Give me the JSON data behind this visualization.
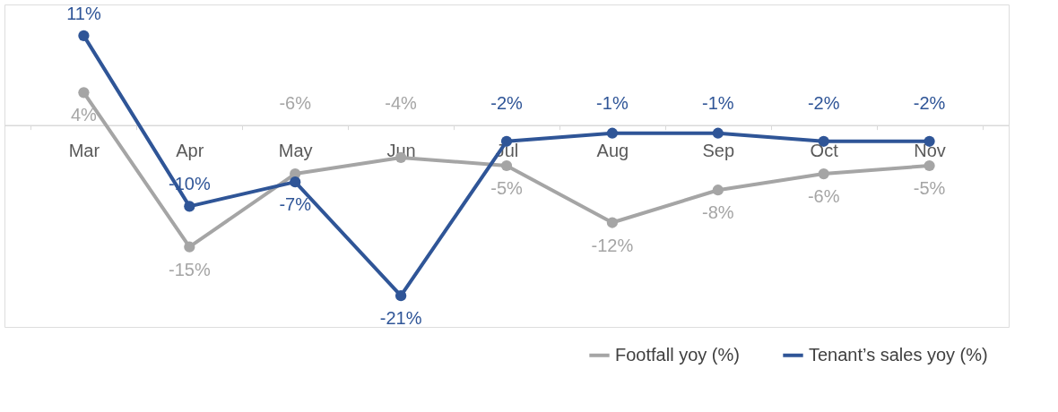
{
  "chart_data": {
    "type": "line",
    "categories": [
      "Mar",
      "Apr",
      "May",
      "Jun",
      "Jul",
      "Aug",
      "Sep",
      "Oct",
      "Nov"
    ],
    "series": [
      {
        "name": "Footfall yoy (%)",
        "color": "#a5a5a5",
        "values": [
          4,
          -15,
          -6,
          -4,
          -5,
          -12,
          -8,
          -6,
          -5
        ],
        "value_labels": [
          "4%",
          "-15%",
          "-6%",
          "-4%",
          "-5%",
          "-12%",
          "-8%",
          "-6%",
          "-5%"
        ]
      },
      {
        "name": "Tenant’s sales yoy (%)",
        "color": "#2f5597",
        "values": [
          11,
          -10,
          -7,
          -21,
          -2,
          -1,
          -1,
          -2,
          -2
        ],
        "value_labels": [
          "11%",
          "-10%",
          "-7%",
          "-21%",
          "-2%",
          "-1%",
          "-1%",
          "-2%",
          "-2%"
        ]
      }
    ],
    "marker": "circle",
    "line_style": "solid",
    "grid": false,
    "legend": "bottom right",
    "tick_labels": "x"
  }
}
